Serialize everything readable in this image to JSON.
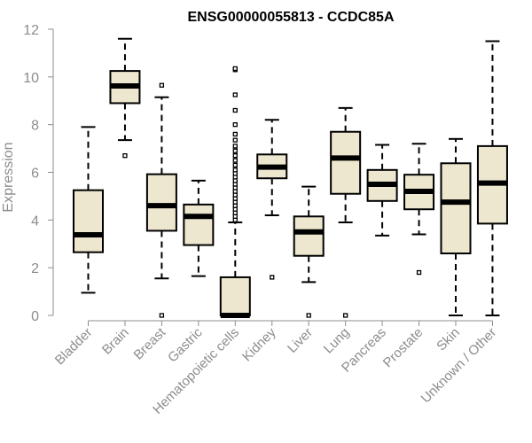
{
  "chart_data": {
    "type": "boxplot",
    "title": "ENSG00000055813 - CCDC85A",
    "xlabel": "",
    "ylabel": "Expression",
    "ylim": [
      0,
      12
    ],
    "yticks": [
      "0",
      "2",
      "4",
      "6",
      "8",
      "10",
      "12"
    ],
    "colors": {
      "box_fill": "#ede7cf",
      "stroke": "#000000",
      "axis": "#8c8c8c"
    },
    "categories": [
      {
        "name": "Bladder",
        "whisker_low": 0.95,
        "q1": 2.65,
        "median": 3.38,
        "q3": 5.25,
        "whisker_high": 7.9,
        "outliers": []
      },
      {
        "name": "Brain",
        "whisker_low": 7.35,
        "q1": 8.9,
        "median": 9.62,
        "q3": 10.25,
        "whisker_high": 11.6,
        "outliers": [
          6.7
        ]
      },
      {
        "name": "Breast",
        "whisker_low": 1.55,
        "q1": 3.55,
        "median": 4.6,
        "q3": 5.92,
        "whisker_high": 9.15,
        "outliers": [
          0.0,
          9.65
        ]
      },
      {
        "name": "Gastric",
        "whisker_low": 1.65,
        "q1": 2.95,
        "median": 4.15,
        "q3": 4.65,
        "whisker_high": 5.65,
        "outliers": []
      },
      {
        "name": "Hematopoietic cells",
        "whisker_low": 0.0,
        "q1": 0.0,
        "median": 0.0,
        "q3": 1.6,
        "whisker_high": 3.9,
        "outliers": [
          4.0,
          4.15,
          4.3,
          4.45,
          4.6,
          4.75,
          4.9,
          5.05,
          5.2,
          5.35,
          5.5,
          5.65,
          5.8,
          5.95,
          6.1,
          6.3,
          6.5,
          6.7,
          6.9,
          7.1,
          7.35,
          7.6,
          8.0,
          8.6,
          9.25,
          10.3,
          10.35
        ]
      },
      {
        "name": "Kidney",
        "whisker_low": 4.2,
        "q1": 5.75,
        "median": 6.22,
        "q3": 6.75,
        "whisker_high": 8.2,
        "outliers": [
          1.6
        ]
      },
      {
        "name": "Liver",
        "whisker_low": 1.4,
        "q1": 2.5,
        "median": 3.5,
        "q3": 4.15,
        "whisker_high": 5.4,
        "outliers": [
          0.0
        ]
      },
      {
        "name": "Lung",
        "whisker_low": 3.9,
        "q1": 5.1,
        "median": 6.6,
        "q3": 7.7,
        "whisker_high": 8.7,
        "outliers": [
          0.0
        ]
      },
      {
        "name": "Pancreas",
        "whisker_low": 3.35,
        "q1": 4.8,
        "median": 5.5,
        "q3": 6.1,
        "whisker_high": 7.15,
        "outliers": []
      },
      {
        "name": "Prostate",
        "whisker_low": 3.4,
        "q1": 4.45,
        "median": 5.2,
        "q3": 5.9,
        "whisker_high": 7.2,
        "outliers": [
          1.8
        ]
      },
      {
        "name": "Skin",
        "whisker_low": 0.0,
        "q1": 2.6,
        "median": 4.75,
        "q3": 6.38,
        "whisker_high": 7.4,
        "outliers": []
      },
      {
        "name": "Unknown / Other",
        "whisker_low": 0.0,
        "q1": 3.85,
        "median": 5.55,
        "q3": 7.1,
        "whisker_high": 11.5,
        "outliers": []
      }
    ]
  }
}
